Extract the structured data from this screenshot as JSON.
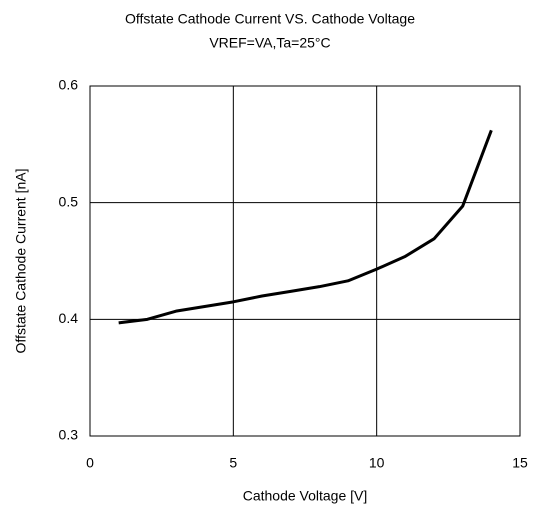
{
  "chart_data": {
    "type": "line",
    "title": "Offstate Cathode Current VS. Cathode Voltage",
    "subtitle": "VREF=VA,Ta=25°C",
    "x_label": "Cathode Voltage [V]",
    "y_label": "Offstate Cathode Current [nA]",
    "x": [
      1,
      2,
      3,
      4,
      5,
      6,
      7,
      8,
      9,
      10,
      11,
      12,
      13,
      14
    ],
    "series": [
      {
        "name": "Offstate Cathode Current",
        "color": "#000000",
        "values": [
          0.397,
          0.4,
          0.407,
          0.411,
          0.415,
          0.42,
          0.424,
          0.428,
          0.433,
          0.443,
          0.454,
          0.469,
          0.497,
          0.562
        ]
      }
    ],
    "xlim": [
      0,
      15
    ],
    "xticks": [
      0,
      5,
      10,
      15
    ],
    "ylim": [
      0.3,
      0.6
    ],
    "yticks": [
      0.3,
      0.4,
      0.5,
      0.6
    ],
    "grid": true
  }
}
